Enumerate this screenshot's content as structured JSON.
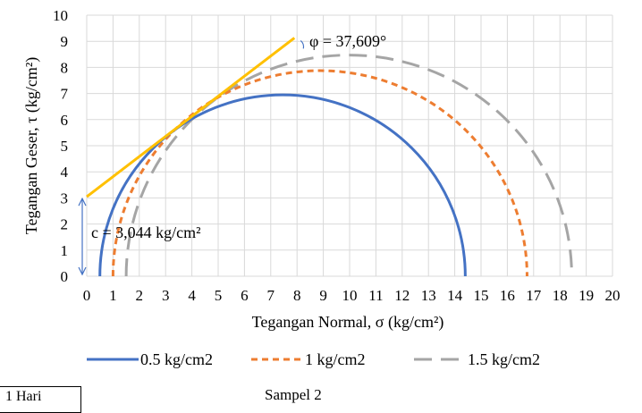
{
  "chart_data": {
    "type": "line",
    "title": "",
    "xlabel": "Tegangan Normal, σ (kg/cm²)",
    "ylabel": "Tegangan Geser, τ (kg/cm²)",
    "xlim": [
      0,
      20
    ],
    "ylim": [
      0,
      10
    ],
    "x_ticks": [
      0,
      1,
      2,
      3,
      4,
      5,
      6,
      7,
      8,
      9,
      10,
      11,
      12,
      13,
      14,
      15,
      16,
      17,
      18,
      19,
      20
    ],
    "y_ticks": [
      0,
      1,
      2,
      3,
      4,
      5,
      6,
      7,
      8,
      9,
      10
    ],
    "grid": true,
    "legend_position": "bottom",
    "series": [
      {
        "name": "0.5 kg/cm2",
        "sigma3": 0.5,
        "sigma1": 14.4,
        "color": "#4472C4",
        "style": "solid"
      },
      {
        "name": "1 kg/cm2",
        "sigma3": 1.0,
        "sigma1": 16.75,
        "color": "#ED7D31",
        "style": "dashed"
      },
      {
        "name": "1.5 kg/cm2",
        "sigma3": 1.5,
        "sigma1": 18.45,
        "color": "#A5A5A5",
        "style": "longdash"
      }
    ],
    "envelope": {
      "c": 3.044,
      "phi_deg": 37.609,
      "x_end": 7.9,
      "color": "#FFC000"
    },
    "annotations": {
      "phi_label": "φ = 37,609°",
      "c_label": "c = 3,044 kg/cm²"
    }
  },
  "footer": {
    "box_label": "1 Hari",
    "caption": "Sampel 2"
  }
}
